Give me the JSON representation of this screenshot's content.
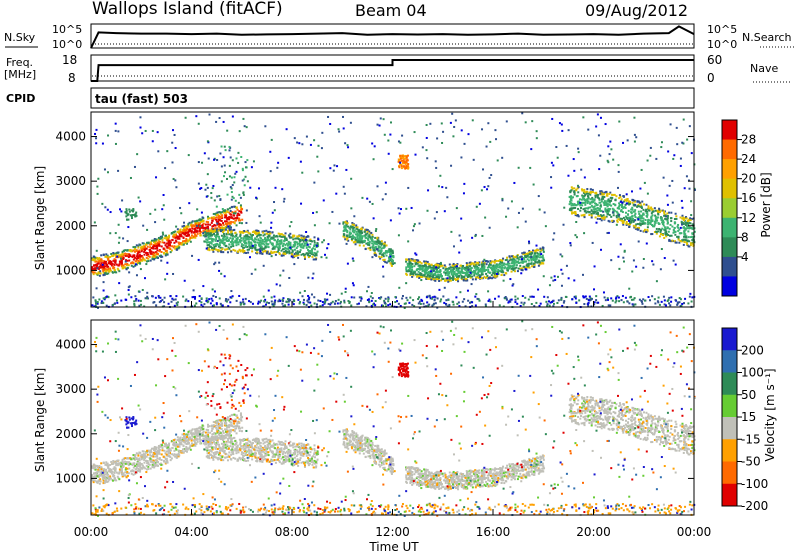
{
  "header": {
    "title": "Wallops Island (fitACF)",
    "beam": "Beam 04",
    "date": "09/Aug/2012"
  },
  "panel_labels": {
    "nsky": "N.Sky",
    "nsearch": "N.Search",
    "freq_1": "Freq.",
    "freq_2": "[MHz]",
    "nave": "Nave",
    "cpid": "CPID",
    "cpid_value": "tau (fast) 503"
  },
  "noise_axis": {
    "left_top": "10^5",
    "left_bottom": "10^0",
    "right_top": "10^5",
    "right_bottom": "10^0"
  },
  "freq_axis": {
    "left_top": "18",
    "left_bottom": "8",
    "right_top": "60",
    "right_bottom": "0"
  },
  "power_colorbar": {
    "title": "Power [dB]",
    "ticks": [
      "28",
      "24",
      "20",
      "16",
      "12",
      "8",
      "4"
    ],
    "colors": [
      "#e00000",
      "#ff6a00",
      "#ffa000",
      "#e0c000",
      "#9acd32",
      "#3cb371",
      "#2e8b57",
      "#2f4f8f",
      "#0000e0"
    ]
  },
  "velocity_colorbar": {
    "title": "Velocity [m s⁻¹]",
    "ticks": [
      "200",
      "100",
      "50",
      "15",
      "-15",
      "-50",
      "-100",
      "-200"
    ],
    "colors": [
      "#1a1ad0",
      "#2f6fb0",
      "#2e8b57",
      "#66cc33",
      "#c0c0b8",
      "#ffa000",
      "#ff6a00",
      "#e00000"
    ]
  },
  "chart_data": [
    {
      "type": "line",
      "name": "noise",
      "x": [
        0,
        0.3,
        1,
        2,
        3,
        4,
        5,
        6,
        7,
        8,
        9,
        10,
        11,
        12,
        13,
        14,
        15,
        16,
        17,
        18,
        19,
        20,
        21,
        22,
        23,
        23.4,
        24
      ],
      "y_top": [
        0,
        0.65,
        0.62,
        0.6,
        0.6,
        0.58,
        0.6,
        0.55,
        0.57,
        0.58,
        0.6,
        0.62,
        0.55,
        0.58,
        0.56,
        0.58,
        0.55,
        0.57,
        0.6,
        0.55,
        0.56,
        0.58,
        0.55,
        0.6,
        0.62,
        0.9,
        0.58
      ]
    },
    {
      "type": "line",
      "name": "frequency",
      "x": [
        0,
        0.25,
        0.3,
        12,
        12,
        24
      ],
      "y": [
        0,
        0,
        11,
        11,
        14.5,
        14.5
      ]
    },
    {
      "type": "heatmap",
      "title": "Power",
      "xlabel": "Time UT",
      "ylabel": "Slant Range [km]",
      "xlim": [
        0,
        24
      ],
      "ylim": [
        180,
        4550
      ],
      "x_ticks": [
        "00:00",
        "04:00",
        "08:00",
        "12:00",
        "16:00",
        "20:00",
        "00:00"
      ],
      "y_ticks": [
        1000,
        2000,
        3000,
        4000
      ],
      "features": [
        {
          "name": "main-trace",
          "points": [
            [
              0,
              1100
            ],
            [
              1,
              1200
            ],
            [
              2,
              1400
            ],
            [
              3,
              1600
            ],
            [
              4,
              1900
            ],
            [
              5,
              2100
            ],
            [
              6,
              2300
            ]
          ],
          "width": 230
        },
        {
          "name": "mid-band",
          "points": [
            [
              4.5,
              1700
            ],
            [
              7,
              1650
            ],
            [
              9,
              1500
            ]
          ],
          "width": 260
        },
        {
          "name": "gap-band",
          "points": [
            [
              10,
              1950
            ],
            [
              11,
              1700
            ],
            [
              12,
              1300
            ]
          ],
          "width": 230
        },
        {
          "name": "afternoon",
          "points": [
            [
              12.5,
              1100
            ],
            [
              14,
              950
            ],
            [
              16,
              1050
            ],
            [
              18,
              1350
            ]
          ],
          "width": 200
        },
        {
          "name": "night",
          "points": [
            [
              19,
              2600
            ],
            [
              21,
              2400
            ],
            [
              23,
              2000
            ],
            [
              24,
              1850
            ]
          ],
          "width": 330
        }
      ]
    },
    {
      "type": "heatmap",
      "title": "Velocity",
      "xlabel": "Time UT",
      "ylabel": "Slant Range [km]",
      "xlim": [
        0,
        24
      ],
      "ylim": [
        180,
        4550
      ],
      "x_ticks": [
        "00:00",
        "04:00",
        "08:00",
        "12:00",
        "16:00",
        "20:00",
        "00:00"
      ],
      "y_ticks": [
        1000,
        2000,
        3000,
        4000
      ]
    }
  ]
}
